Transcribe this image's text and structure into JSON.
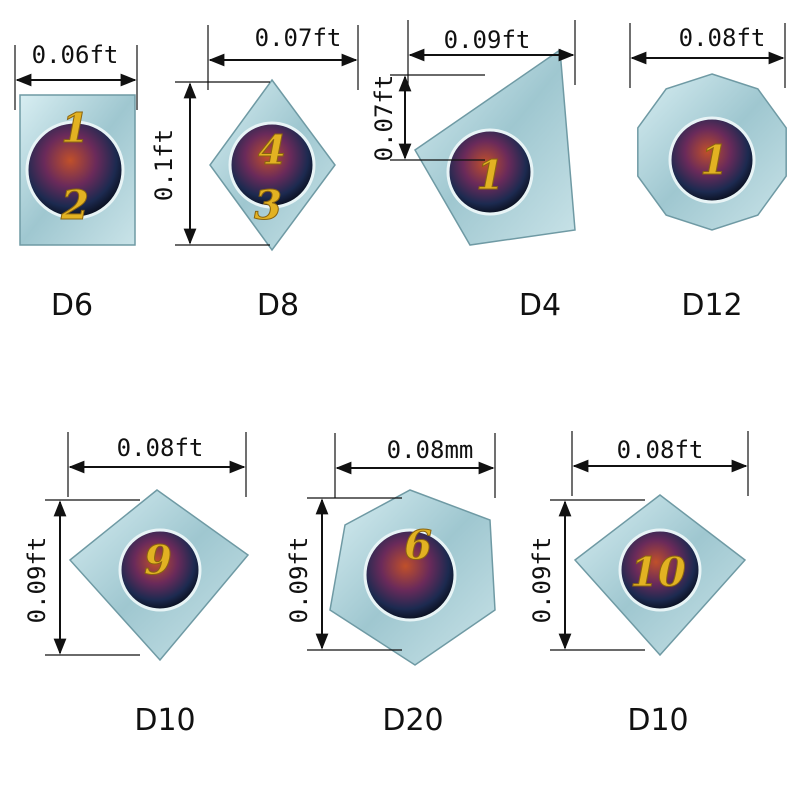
{
  "dice": [
    {
      "name": "D6",
      "width": "0.06ft",
      "faces": [
        "1",
        "2"
      ]
    },
    {
      "name": "D8",
      "width": "0.07ft",
      "height": "0.1ft",
      "faces": [
        "4",
        "3"
      ]
    },
    {
      "name": "D4",
      "width": "0.09ft",
      "height": "0.07ft",
      "faces": [
        "1"
      ]
    },
    {
      "name": "D12",
      "width": "0.08ft",
      "faces": [
        "1"
      ]
    },
    {
      "name": "D10",
      "width": "0.08ft",
      "height": "0.09ft",
      "faces": [
        "9"
      ]
    },
    {
      "name": "D20",
      "width": "0.08mm",
      "height": "0.09ft",
      "faces": [
        "6"
      ]
    },
    {
      "name": "D10",
      "width": "0.08ft",
      "height": "0.09ft",
      "faces": [
        "10"
      ]
    }
  ]
}
